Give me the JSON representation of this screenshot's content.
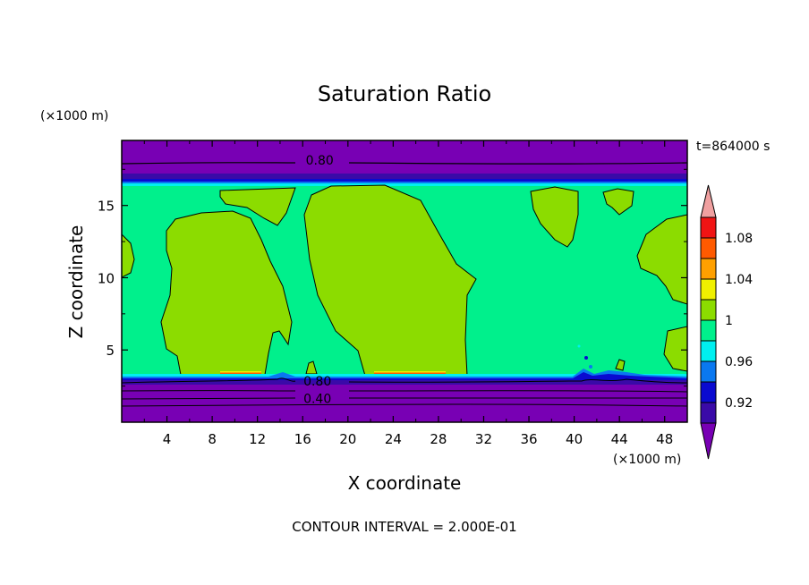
{
  "chart_data": {
    "type": "contour",
    "title": "Saturation Ratio",
    "xlabel": "X coordinate",
    "ylabel": "Z coordinate",
    "x_unit": "(×1000 m)",
    "y_unit": "(×1000 m)",
    "time_label": "t=864000 s",
    "footer": "CONTOUR INTERVAL = 2.000E-01",
    "xlim": [
      0,
      50
    ],
    "ylim": [
      0,
      19.5
    ],
    "xticks": [
      "4",
      "8",
      "12",
      "16",
      "20",
      "24",
      "28",
      "32",
      "36",
      "40",
      "44",
      "48"
    ],
    "xtick_values": [
      4,
      8,
      12,
      16,
      20,
      24,
      28,
      32,
      36,
      40,
      44,
      48
    ],
    "yticks": [
      "5",
      "10",
      "15"
    ],
    "ytick_values": [
      5,
      10,
      15
    ],
    "contour_labels": [
      {
        "text": "0.80",
        "x": 17.5,
        "z": 18.2
      },
      {
        "text": "0.80",
        "x": 17.3,
        "z": 2.9
      },
      {
        "text": "0.40",
        "x": 17.3,
        "z": 1.7
      }
    ],
    "colorbar": {
      "levels": [
        0.92,
        0.94,
        0.96,
        0.98,
        1.0,
        1.02,
        1.04,
        1.06,
        1.08
      ],
      "tick_labels": [
        "0.92",
        "0.96",
        "1",
        "1.04",
        "1.08"
      ],
      "colors": [
        "#3a0aa8",
        "#0a0ad0",
        "#0a78f0",
        "#00f0f0",
        "#00f08c",
        "#8cdc00",
        "#f0f000",
        "#ffa000",
        "#ff5a00",
        "#f01414"
      ],
      "under_color": "#7800b4",
      "over_color": "#f0a0a0"
    },
    "fields": {
      "upper_dry_layer_z": [
        16.7,
        19.5
      ],
      "lower_dry_layer_z": [
        0,
        3.3
      ],
      "moist_layer_z": [
        3.3,
        16.7
      ],
      "moist_background_value": 0.99,
      "cloud_regions_value": 1.01
    }
  }
}
